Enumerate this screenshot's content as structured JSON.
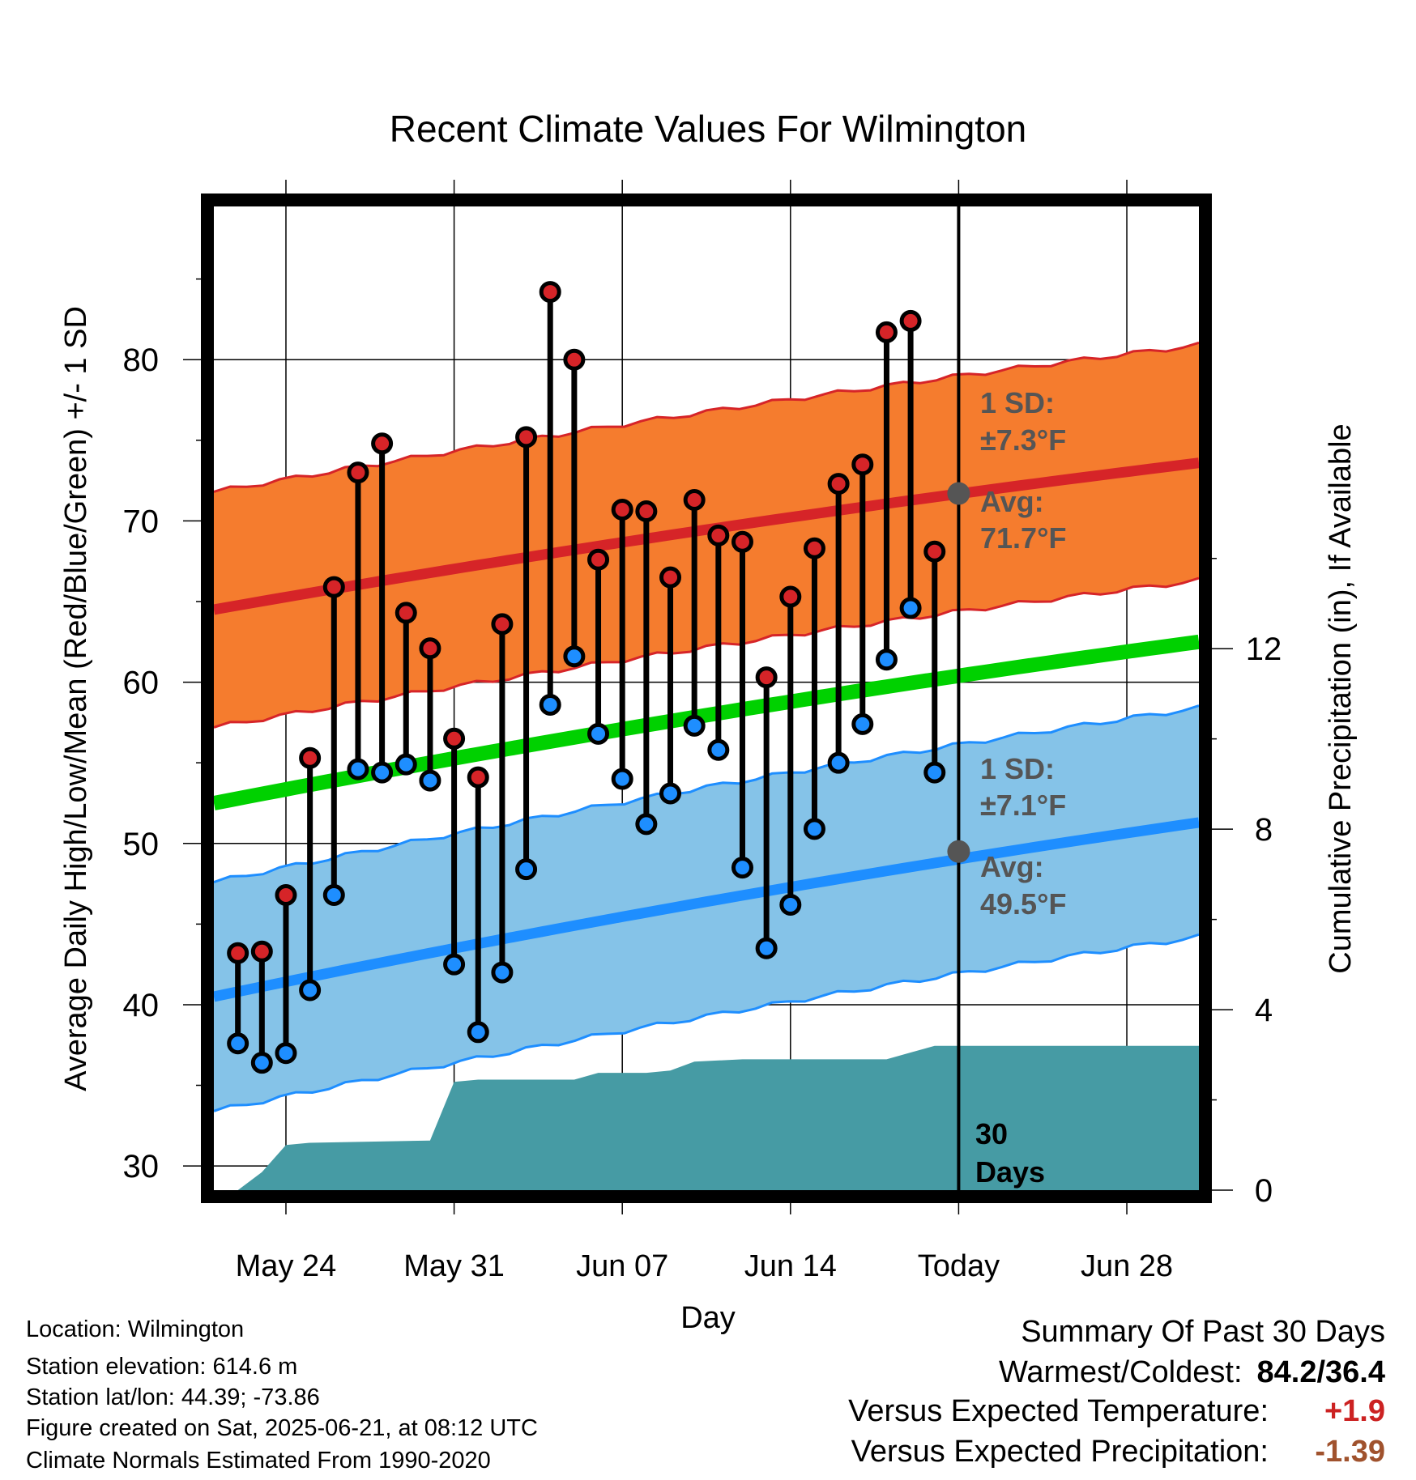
{
  "chart_data": {
    "type": "line",
    "title": "Recent Climate Values For Wilmington",
    "xlabel": "Day",
    "ylabel": "Average Daily High/Low/Mean (Red/Blue/Green) +/- 1 SD",
    "y2label": "Cumulative Precipitation (in), If Available",
    "ylim": [
      28.5,
      89.5
    ],
    "y2lim": [
      0,
      21.8
    ],
    "yticks": [
      30,
      40,
      50,
      60,
      70,
      80
    ],
    "y2ticks": [
      0,
      4,
      8,
      12
    ],
    "xticks": [
      "May 24",
      "May 31",
      "Jun 07",
      "Jun 14",
      "Today",
      "Jun 28"
    ],
    "x_start": "May 21",
    "x_end": "Jul 01",
    "grid": true,
    "daily_high": [
      43.2,
      43.3,
      46.8,
      55.3,
      65.9,
      73.0,
      74.8,
      64.3,
      62.1,
      56.5,
      54.1,
      63.6,
      75.2,
      84.2,
      80.0,
      67.6,
      70.7,
      70.6,
      66.5,
      71.3,
      69.1,
      68.7,
      60.3,
      65.3,
      68.3,
      72.3,
      73.5,
      81.7,
      82.4,
      68.1
    ],
    "daily_low": [
      37.6,
      36.4,
      37.0,
      40.9,
      46.8,
      54.6,
      54.4,
      54.9,
      53.9,
      42.5,
      38.3,
      42.0,
      48.4,
      58.6,
      61.6,
      56.8,
      54.0,
      51.2,
      53.1,
      57.3,
      55.8,
      48.5,
      43.5,
      46.2,
      50.9,
      55.0,
      57.4,
      61.4,
      64.6,
      54.4
    ],
    "normal_high_avg": [
      64.5,
      73.6
    ],
    "normal_high_sd": 7.3,
    "normal_low_avg": [
      40.5,
      51.3
    ],
    "normal_low_sd": 7.1,
    "normal_mean": [
      52.5,
      62.5
    ],
    "cumulative_precip_days": [
      "May 21",
      "May 22",
      "May 23",
      "May 24",
      "May 25",
      "May 30",
      "May 31",
      "Jun 01",
      "Jun 05",
      "Jun 06",
      "Jun 08",
      "Jun 09",
      "Jun 10",
      "Jun 12",
      "Jun 18",
      "Jun 19",
      "Jun 20",
      "Jul 01"
    ],
    "cumulative_precip": [
      0.0,
      0.0,
      0.4,
      1.0,
      1.05,
      1.1,
      2.4,
      2.45,
      2.45,
      2.6,
      2.6,
      2.65,
      2.85,
      2.9,
      2.9,
      3.05,
      3.2,
      3.2
    ],
    "annotations": {
      "high_sd": "1 SD:",
      "high_sd_val": "±7.3°F",
      "high_avg": "Avg:",
      "high_avg_val": "71.7°F",
      "low_sd": "1 SD:",
      "low_sd_val": "±7.1°F",
      "low_avg": "Avg:",
      "low_avg_val": "49.5°F",
      "days_num": "30",
      "days_label": "Days"
    },
    "today_high_avg": 71.7,
    "today_low_avg": 49.5,
    "colors": {
      "high_band": "#f57c2e",
      "high_line": "#d62428",
      "low_band": "#85c3e8",
      "low_line": "#1e8eff",
      "mean_line": "#00d100",
      "precip": "#469ba4",
      "annotation": "#555555"
    }
  },
  "info": {
    "location": "Location: Wilmington",
    "elevation": "Station elevation: 614.6 m",
    "latlon": "Station lat/lon: 44.39; -73.86",
    "created": "Figure created on Sat, 2025-06-21, at 08:12 UTC",
    "normals": "Climate Normals Estimated From 1990-2020"
  },
  "summary": {
    "title": "Summary Of Past 30 Days",
    "warm_cold_label": "Warmest/Coldest:",
    "warm_cold_value": "84.2/36.4",
    "temp_label": "Versus Expected Temperature:",
    "temp_value": "+1.9",
    "temp_color": "#cc2222",
    "precip_label": "Versus Expected Precipitation:",
    "precip_value": "-1.39",
    "precip_color": "#a0522d"
  }
}
